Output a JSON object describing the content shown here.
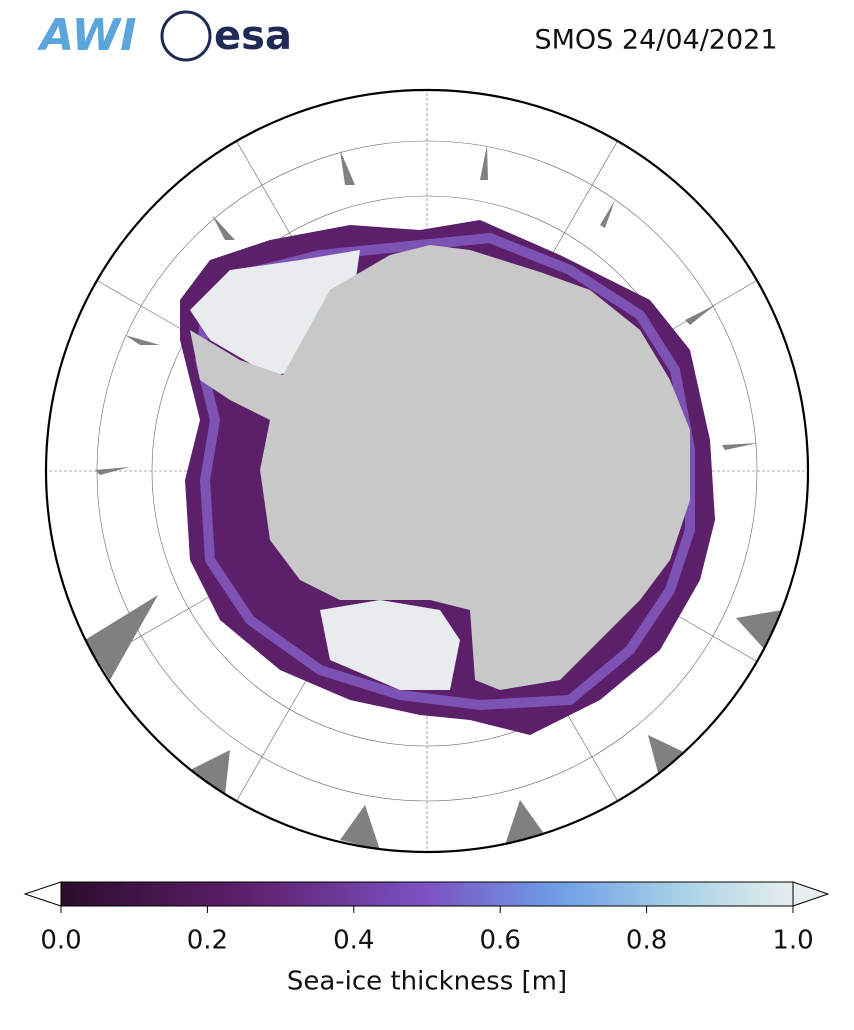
{
  "header": {
    "logos": [
      "AWI",
      "esa"
    ],
    "title": "SMOS 24/04/2021"
  },
  "colorbar": {
    "label": "Sea-ice thickness [m]",
    "lim": [
      0,
      1
    ],
    "ticks": [
      {
        "value": 0,
        "label": "0.0"
      },
      0.2,
      0.4,
      0.6,
      0.8,
      {
        "value": 1,
        "label": "1.0"
      }
    ]
  }
}
